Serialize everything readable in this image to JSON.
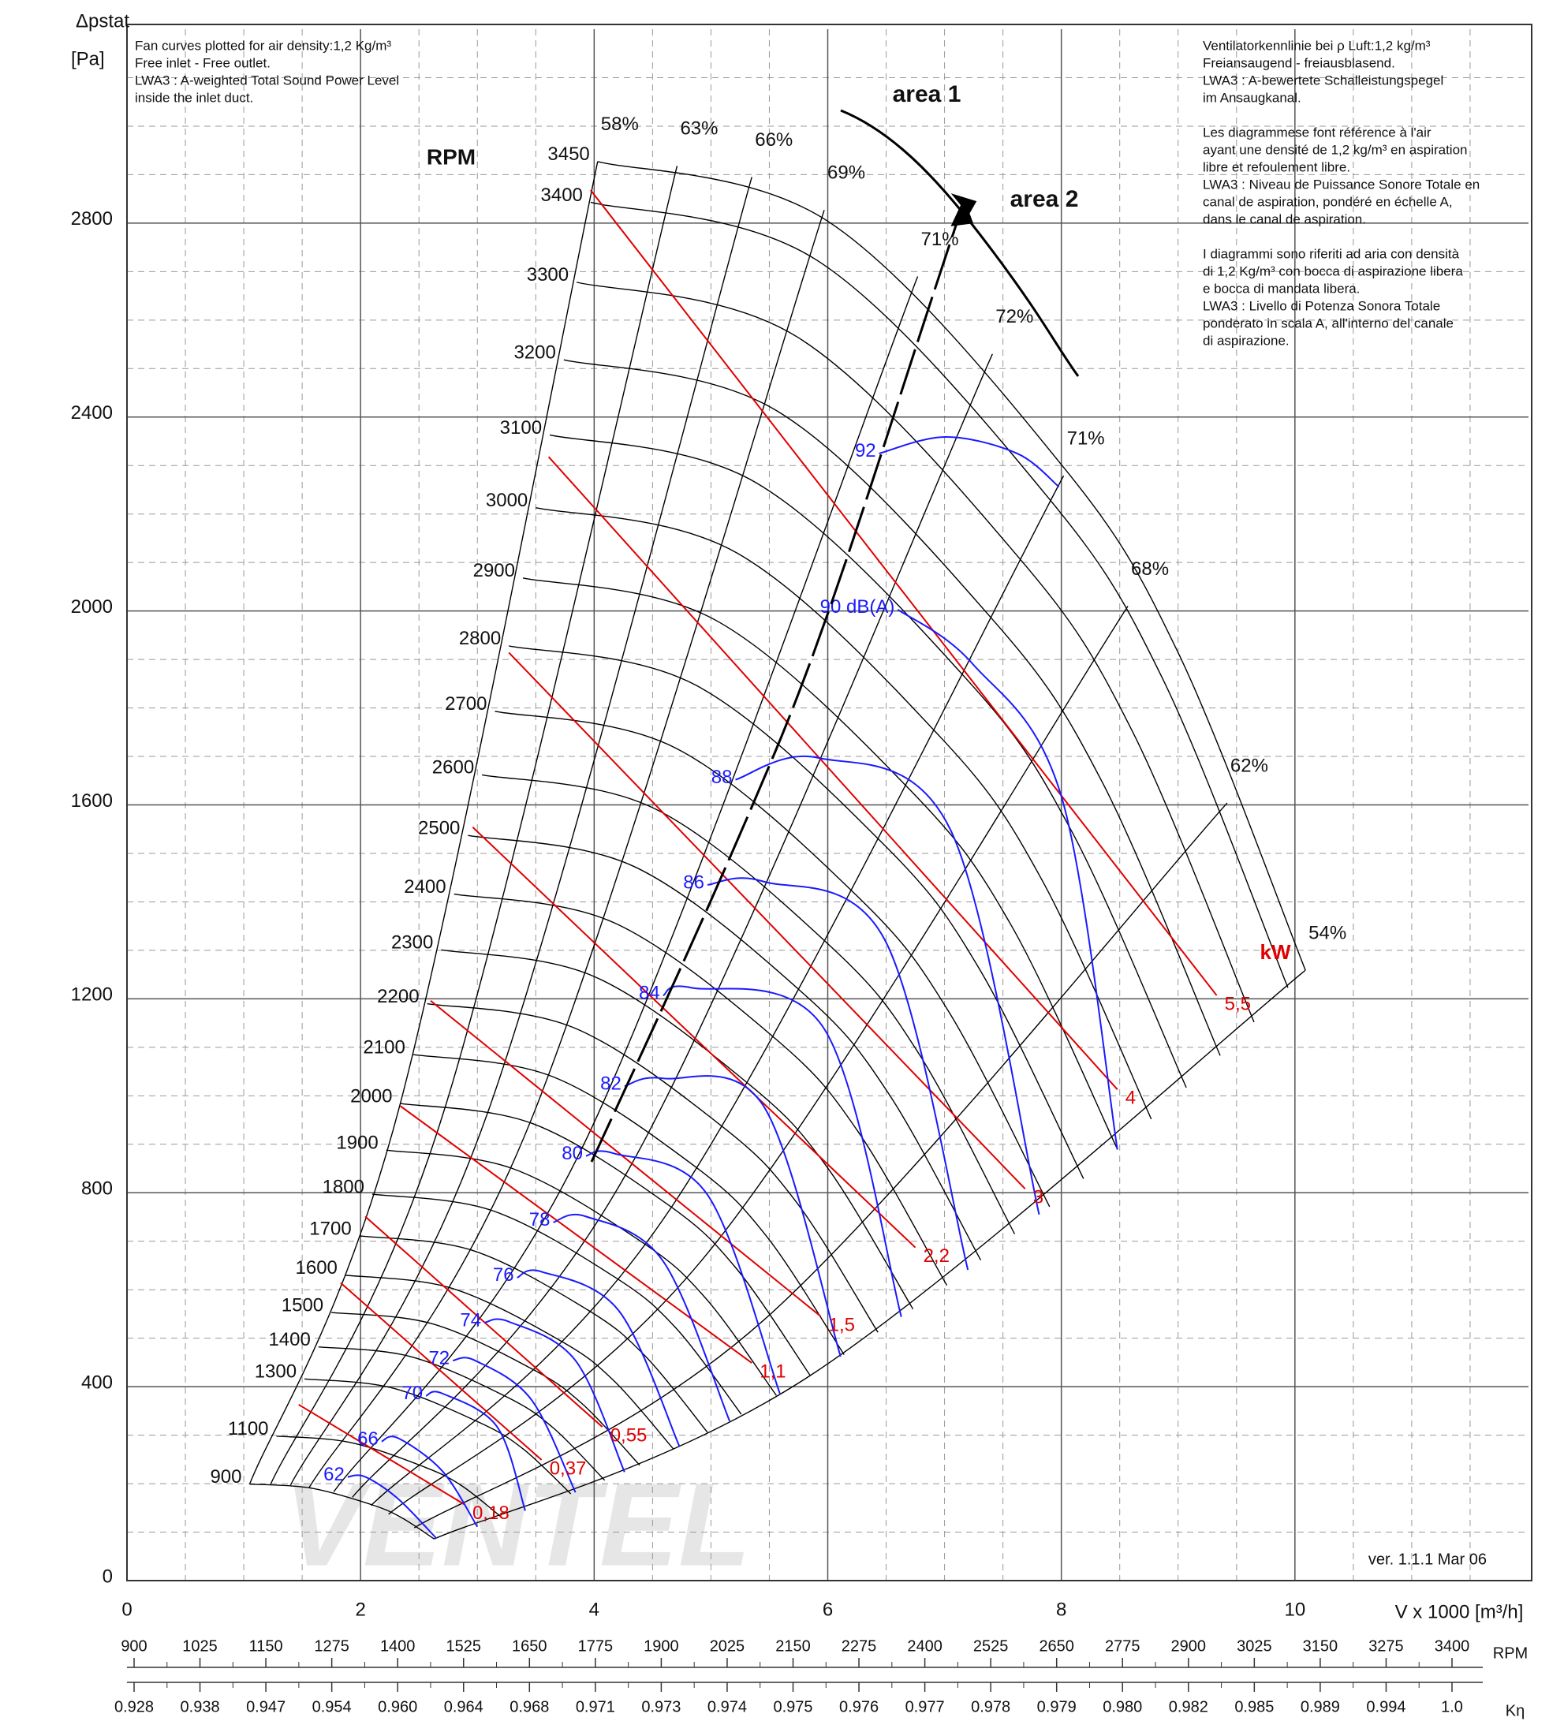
{
  "chart_data": {
    "type": "line",
    "notes_left": [
      "Fan curves plotted for air density:1,2 Kg/m³",
      "Free inlet - Free outlet.",
      "LWA3 : A-weighted Total Sound Power Level",
      "inside the inlet duct."
    ],
    "notes_right": [
      [
        "Ventilatorkennlinie bei ρ Luft:1,2 kg/m³",
        "Freiansaugend - freiausblasend.",
        "LWA3 : A-bewertete Schalleistungspegel",
        "im Ansaugkanal."
      ],
      [
        "Les diagrammese font référence à l'air",
        "ayant une densité de 1,2 kg/m³ en aspiration",
        "libre et refoulement libre.",
        "LWA3 : Niveau de Puissance Sonore Totale en",
        "canal de aspiration, pondéré en échelle A,",
        "dans le canal de aspiration."
      ],
      [
        "I diagrammi sono riferiti ad aria con densità",
        "di 1,2 Kg/m³ con bocca di aspirazione libera",
        "e bocca di mandata libera.",
        "LWA3 : Livello di Potenza Sonora Totale",
        "ponderato in scala A, all'interno del canale",
        "di aspirazione."
      ]
    ],
    "y_label": "Δpstat",
    "y_unit": "[Pa]",
    "x_label": "V x 1000 [m³/h]",
    "xlim": [
      0,
      12
    ],
    "ylim": [
      0,
      3200
    ],
    "xticks": [
      0,
      2,
      4,
      6,
      8,
      10
    ],
    "yticks": [
      0,
      400,
      800,
      1200,
      1600,
      2000,
      2400,
      2800
    ],
    "x_minor_step": 0.5,
    "y_minor_step": 100,
    "grid": true,
    "rpm_title": "RPM",
    "rpm_color": "#000000",
    "rpm_curves": [
      {
        "rpm": 3450,
        "x": [
          4.03,
          6,
          8,
          9,
          10.09
        ],
        "y": [
          2927,
          2804,
          2302,
          1914,
          1259
        ]
      },
      {
        "rpm": 3400,
        "x": [
          3.97,
          5.91,
          7.88,
          8.87,
          9.94
        ],
        "y": [
          2843,
          2723,
          2236,
          1859,
          1223
        ]
      },
      {
        "rpm": 3300,
        "x": [
          3.85,
          5.74,
          7.65,
          8.61,
          9.65
        ],
        "y": [
          2678,
          2565,
          2106,
          1751,
          1152
        ]
      },
      {
        "rpm": 3200,
        "x": [
          3.74,
          5.57,
          7.42,
          8.35,
          9.36
        ],
        "y": [
          2518,
          2412,
          1980,
          1647,
          1083
        ]
      },
      {
        "rpm": 3100,
        "x": [
          3.62,
          5.39,
          7.19,
          8.09,
          9.07
        ],
        "y": [
          2363,
          2264,
          1859,
          1545,
          1017
        ]
      },
      {
        "rpm": 3000,
        "x": [
          3.5,
          5.22,
          6.96,
          7.83,
          8.77
        ],
        "y": [
          2213,
          2120,
          1741,
          1447,
          952
        ]
      },
      {
        "rpm": 2900,
        "x": [
          3.39,
          5.04,
          6.72,
          7.57,
          8.48
        ],
        "y": [
          2068,
          1981,
          1627,
          1352,
          890
        ]
      },
      {
        "rpm": 2800,
        "x": [
          3.27,
          4.87,
          6.49,
          7.3,
          8.19
        ],
        "y": [
          1928,
          1847,
          1516,
          1261,
          829
        ]
      },
      {
        "rpm": 2700,
        "x": [
          3.15,
          4.7,
          6.26,
          7.04,
          7.9
        ],
        "y": [
          1793,
          1717,
          1410,
          1172,
          771
        ]
      },
      {
        "rpm": 2600,
        "x": [
          3.04,
          4.52,
          6.03,
          6.78,
          7.6
        ],
        "y": [
          1662,
          1592,
          1307,
          1087,
          715
        ]
      },
      {
        "rpm": 2500,
        "x": [
          2.92,
          4.35,
          5.8,
          6.52,
          7.31
        ],
        "y": [
          1537,
          1472,
          1209,
          1005,
          661
        ]
      },
      {
        "rpm": 2400,
        "x": [
          2.8,
          4.17,
          5.57,
          6.26,
          7.02
        ],
        "y": [
          1416,
          1357,
          1114,
          926,
          609
        ]
      },
      {
        "rpm": 2300,
        "x": [
          2.69,
          4,
          5.33,
          6,
          6.73
        ],
        "y": [
          1301,
          1246,
          1023,
          851,
          560
        ]
      },
      {
        "rpm": 2200,
        "x": [
          2.57,
          3.83,
          5.1,
          5.74,
          6.43
        ],
        "y": [
          1190,
          1140,
          936,
          778,
          512
        ]
      },
      {
        "rpm": 2100,
        "x": [
          2.45,
          3.65,
          4.87,
          5.48,
          6.14
        ],
        "y": [
          1085,
          1039,
          853,
          709,
          466
        ]
      },
      {
        "rpm": 2000,
        "x": [
          2.34,
          3.48,
          4.64,
          5.22,
          5.85
        ],
        "y": [
          984,
          942,
          774,
          643,
          423
        ]
      },
      {
        "rpm": 1900,
        "x": [
          2.22,
          3.3,
          4.41,
          4.96,
          5.56
        ],
        "y": [
          888,
          850,
          698,
          581,
          382
        ]
      },
      {
        "rpm": 1800,
        "x": [
          2.1,
          3.13,
          4.17,
          4.7,
          5.26
        ],
        "y": [
          797,
          763,
          627,
          521,
          343
        ]
      },
      {
        "rpm": 1700,
        "x": [
          1.99,
          2.96,
          3.94,
          4.43,
          4.97
        ],
        "y": [
          711,
          681,
          559,
          465,
          306
        ]
      },
      {
        "rpm": 1600,
        "x": [
          1.87,
          2.78,
          3.71,
          4.17,
          4.68
        ],
        "y": [
          630,
          603,
          495,
          412,
          271
        ]
      },
      {
        "rpm": 1500,
        "x": [
          1.75,
          2.61,
          3.48,
          3.91,
          4.39
        ],
        "y": [
          553,
          530,
          435,
          362,
          238
        ]
      },
      {
        "rpm": 1400,
        "x": [
          1.64,
          2.43,
          3.25,
          3.65,
          4.09
        ],
        "y": [
          482,
          462,
          379,
          315,
          207
        ]
      },
      {
        "rpm": 1300,
        "x": [
          1.52,
          2.26,
          3.01,
          3.39,
          3.8
        ],
        "y": [
          416,
          398,
          327,
          272,
          179
        ]
      },
      {
        "rpm": 1100,
        "x": [
          1.28,
          1.91,
          2.55,
          2.87,
          3.22
        ],
        "y": [
          298,
          285,
          234,
          195,
          128
        ]
      },
      {
        "rpm": 900,
        "x": [
          1.05,
          1.57,
          2.09,
          2.35,
          2.63
        ],
        "y": [
          199,
          191,
          157,
          130,
          86
        ]
      }
    ],
    "efficiency_color": "#000000",
    "efficiency_lines": [
      {
        "label": "58%",
        "x": [
          1.05,
          2.34,
          4.03
        ],
        "y": [
          199,
          984,
          2927
        ]
      },
      {
        "label": "63%",
        "x": [
          1.23,
          2.73,
          4.71
        ],
        "y": [
          199,
          981,
          2918
        ]
      },
      {
        "label": "66%",
        "x": [
          1.4,
          3.1,
          5.35
        ],
        "y": [
          197,
          973,
          2895
        ]
      },
      {
        "label": "69%",
        "x": [
          1.56,
          3.46,
          5.97
        ],
        "y": [
          192,
          950,
          2827
        ]
      },
      {
        "label": "71%",
        "x": [
          1.77,
          3.92,
          6.77
        ],
        "y": [
          183,
          904,
          2690
        ]
      },
      {
        "label": "72%",
        "x": [
          1.93,
          4.3,
          7.41
        ],
        "y": [
          172,
          850,
          2530
        ]
      },
      {
        "label": "71%",
        "x": [
          2.09,
          4.65,
          8.02
        ],
        "y": [
          155,
          766,
          2279
        ]
      },
      {
        "label": "68%",
        "x": [
          2.24,
          4.97,
          8.57
        ],
        "y": [
          137,
          675,
          2010
        ]
      },
      {
        "label": "62%",
        "x": [
          2.46,
          5.46,
          9.42
        ],
        "y": [
          109,
          539,
          1604
        ]
      },
      {
        "label": "54%",
        "x": [
          2.63,
          5.85,
          10.09
        ],
        "y": [
          86,
          423,
          1259
        ]
      }
    ],
    "power_title": "kW",
    "power_color": "#e00000",
    "power_lines": [
      {
        "label": "0,18",
        "x": [
          1.47,
          2.89
        ],
        "y": [
          363,
          157
        ]
      },
      {
        "label": "0,37",
        "x": [
          1.83,
          3.55
        ],
        "y": [
          614,
          249
        ]
      },
      {
        "label": "0,55",
        "x": [
          2.04,
          4.07
        ],
        "y": [
          751,
          317
        ]
      },
      {
        "label": "1,1",
        "x": [
          2.34,
          5.35
        ],
        "y": [
          979,
          449
        ]
      },
      {
        "label": "1,5",
        "x": [
          2.6,
          5.94
        ],
        "y": [
          1196,
          545
        ]
      },
      {
        "label": "2,2",
        "x": [
          2.96,
          6.75
        ],
        "y": [
          1554,
          687
        ]
      },
      {
        "label": "3",
        "x": [
          3.27,
          7.69
        ],
        "y": [
          1914,
          808
        ]
      },
      {
        "label": "4",
        "x": [
          3.61,
          8.48
        ],
        "y": [
          2318,
          1013
        ]
      },
      {
        "label": "5,5",
        "x": [
          3.97,
          9.33
        ],
        "y": [
          2868,
          1207
        ]
      }
    ],
    "sound_color": "#1a1aff",
    "sound_lines": [
      {
        "label": "62",
        "x": [
          1.89,
          2.04,
          2.32,
          2.65
        ],
        "y": [
          214,
          214,
          169,
          87
        ]
      },
      {
        "label": "66",
        "x": [
          2.18,
          2.32,
          2.7,
          3
        ],
        "y": [
          287,
          294,
          226,
          111
        ]
      },
      {
        "label": "70",
        "x": [
          2.56,
          2.7,
          3.17,
          3.41
        ],
        "y": [
          381,
          386,
          317,
          144
        ]
      },
      {
        "label": "72",
        "x": [
          2.79,
          2.98,
          3.46,
          3.84
        ],
        "y": [
          454,
          454,
          374,
          182
        ]
      },
      {
        "label": "74",
        "x": [
          3.06,
          3.27,
          3.84,
          4.26
        ],
        "y": [
          532,
          534,
          454,
          224
        ]
      },
      {
        "label": "76",
        "x": [
          3.34,
          3.55,
          4.21,
          4.73
        ],
        "y": [
          625,
          637,
          557,
          277
        ]
      },
      {
        "label": "78",
        "x": [
          3.65,
          3.93,
          4.59,
          5.16
        ],
        "y": [
          739,
          751,
          659,
          329
        ]
      },
      {
        "label": "80",
        "x": [
          3.93,
          4.17,
          4.97,
          5.59
        ],
        "y": [
          876,
          881,
          796,
          386
        ]
      },
      {
        "label": "82",
        "x": [
          4.26,
          4.59,
          5.45,
          6.11
        ],
        "y": [
          1020,
          1036,
          979,
          462
        ]
      },
      {
        "label": "84",
        "x": [
          4.59,
          4.83,
          5.97,
          6.63
        ],
        "y": [
          1207,
          1223,
          1138,
          544
        ]
      },
      {
        "label": "86",
        "x": [
          4.97,
          5.45,
          6.49,
          7.2
        ],
        "y": [
          1435,
          1442,
          1321,
          641
        ]
      },
      {
        "label": "88",
        "x": [
          5.21,
          5.92,
          7.05,
          7.81
        ],
        "y": [
          1652,
          1697,
          1549,
          755
        ]
      },
      {
        "label": "90 dB(A)",
        "x": [
          6.6,
          7.24,
          8,
          8.48
        ],
        "y": [
          2003,
          1891,
          1618,
          889
        ]
      },
      {
        "label": "92",
        "x": [
          6.44,
          7.01,
          7.62,
          7.98
        ],
        "y": [
          2325,
          2359,
          2325,
          2256
        ]
      }
    ],
    "areas": [
      "area 1",
      "area 2"
    ],
    "version": "ver. 1.1.1 Mar 06",
    "watermark": "VENTEL",
    "rpm_scale": {
      "title": "RPM",
      "values": [
        900,
        1025,
        1150,
        1275,
        1400,
        1525,
        1650,
        1775,
        1900,
        2025,
        2150,
        2275,
        2400,
        2525,
        2650,
        2775,
        2900,
        3025,
        3150,
        3275,
        3400
      ]
    },
    "k_scale": {
      "title": "Kη",
      "values": [
        "0.928",
        "0.938",
        "0.947",
        "0.954",
        "0.960",
        "0.964",
        "0.968",
        "0.971",
        "0.973",
        "0.974",
        "0.975",
        "0.976",
        "0.977",
        "0.978",
        "0.979",
        "0.980",
        "0.982",
        "0.985",
        "0.989",
        "0.994",
        "1.0"
      ]
    }
  }
}
